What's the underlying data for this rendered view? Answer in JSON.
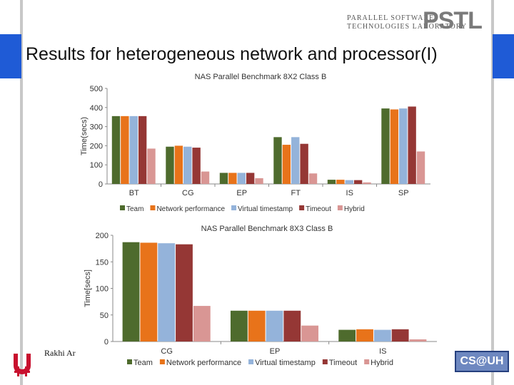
{
  "header": {
    "logo_line1": "PARALLEL SOFTWARE",
    "logo_line2": "TECHNOLOGIES LABORATORY",
    "logo_big": "PSTL"
  },
  "slide": {
    "title": "Results for heterogeneous network and processor(I)"
  },
  "footer": {
    "author": "Rakhi Ar",
    "org_logo": "CS@UH"
  },
  "legend": [
    "Team",
    "Network performance",
    "Virtual timestamp",
    "Timeout",
    "Hybrid"
  ],
  "colors": {
    "Team": "#4e6b2d",
    "Network performance": "#e8731a",
    "Virtual timestamp": "#94b3da",
    "Timeout": "#953735",
    "Hybrid": "#d99694",
    "accent": "#1f5bd6"
  },
  "chart_data": [
    {
      "type": "bar",
      "title": "NAS Parallel Benchmark 8X2 Class B",
      "ylabel": "Time(secs)",
      "ylim": [
        0,
        500
      ],
      "yticks": [
        "0",
        "100",
        "200",
        "300",
        "400",
        "500"
      ],
      "categories": [
        "BT",
        "CG",
        "EP",
        "FT",
        "IS",
        "SP"
      ],
      "series": [
        {
          "name": "Team",
          "values": [
            355,
            195,
            58,
            245,
            22,
            395
          ]
        },
        {
          "name": "Network performance",
          "values": [
            355,
            200,
            58,
            205,
            22,
            390
          ]
        },
        {
          "name": "Virtual timestamp",
          "values": [
            355,
            195,
            58,
            245,
            20,
            395
          ]
        },
        {
          "name": "Timeout",
          "values": [
            355,
            190,
            58,
            210,
            20,
            405
          ]
        },
        {
          "name": "Hybrid",
          "values": [
            185,
            65,
            30,
            55,
            8,
            170
          ]
        }
      ]
    },
    {
      "type": "bar",
      "title": "NAS Parallel Benchmark 8X3 Class B",
      "ylabel": "Time[secs]",
      "ylim": [
        0,
        200
      ],
      "yticks": [
        "0",
        "50",
        "100",
        "150",
        "200"
      ],
      "categories": [
        "CG",
        "EP",
        "IS"
      ],
      "series": [
        {
          "name": "Team",
          "values": [
            187,
            58,
            22
          ]
        },
        {
          "name": "Network performance",
          "values": [
            186,
            58,
            23
          ]
        },
        {
          "name": "Virtual timestamp",
          "values": [
            185,
            58,
            22
          ]
        },
        {
          "name": "Timeout",
          "values": [
            183,
            58,
            23
          ]
        },
        {
          "name": "Hybrid",
          "values": [
            67,
            30,
            4
          ]
        }
      ]
    }
  ]
}
